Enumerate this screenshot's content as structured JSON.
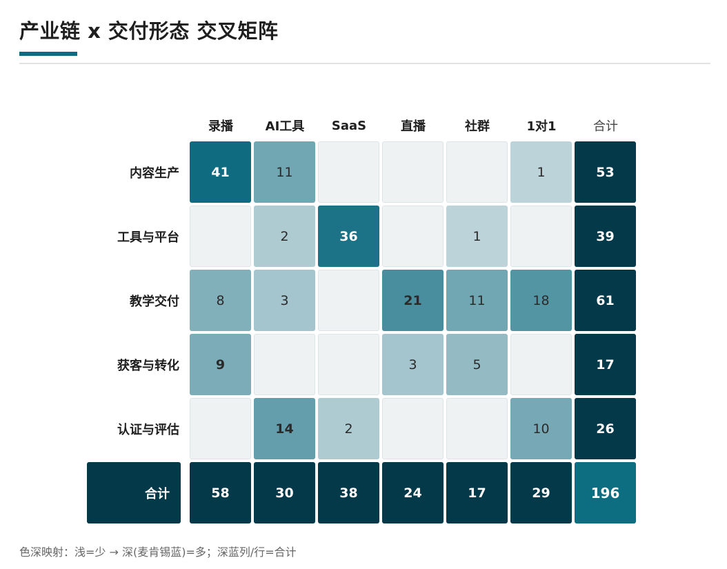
{
  "header": {
    "title": "产业链 x 交付形态 交叉矩阵"
  },
  "footnote": "色深映射：浅=少 → 深(麦肯锡蓝)=多；深蓝列/行=合计",
  "colors": {
    "accent": "#0f6b80",
    "total_cell": "#04394a",
    "grand_total_cell": "#0c6e80",
    "empty_cell": "#eef2f3",
    "scale_low": "#dbe6e9",
    "scale_high": "#0f6b80"
  },
  "chart_data": {
    "type": "heatmap",
    "columns": [
      "录播",
      "AI工具",
      "SaaS",
      "直播",
      "社群",
      "1对1"
    ],
    "rows": [
      "内容生产",
      "工具与平台",
      "教学交付",
      "获客与转化",
      "认证与评估"
    ],
    "values": [
      [
        41,
        11,
        null,
        null,
        null,
        1
      ],
      [
        null,
        2,
        36,
        null,
        1,
        null
      ],
      [
        8,
        3,
        null,
        21,
        11,
        18
      ],
      [
        9,
        null,
        null,
        3,
        5,
        null
      ],
      [
        null,
        14,
        2,
        null,
        null,
        10
      ]
    ],
    "bold_values": [
      [
        true,
        false,
        false,
        false,
        false,
        false
      ],
      [
        false,
        false,
        true,
        false,
        false,
        false
      ],
      [
        false,
        false,
        false,
        true,
        false,
        false
      ],
      [
        true,
        false,
        false,
        false,
        false,
        false
      ],
      [
        false,
        true,
        false,
        false,
        false,
        false
      ]
    ],
    "total_label": "合计",
    "row_totals": [
      53,
      39,
      61,
      17,
      26
    ],
    "col_totals": [
      58,
      30,
      38,
      24,
      17,
      29
    ],
    "grand_total": 196
  }
}
